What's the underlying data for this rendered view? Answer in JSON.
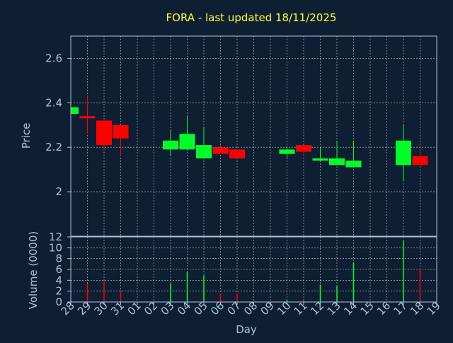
{
  "chart_data": [
    {
      "type": "candlestick",
      "title": "FORA - last updated 18/11/2025",
      "ylabel": "Price",
      "ylim": [
        1.8,
        2.7
      ],
      "yticks": [
        "2",
        "2.2",
        "2.4",
        "2.6"
      ],
      "ytick_values": [
        2.0,
        2.2,
        2.4,
        2.6
      ],
      "grid": true,
      "colors": {
        "up": "#00ff2a",
        "down": "#ff0000",
        "background": "#0f1f33",
        "plot": "#0f1f33",
        "grid": "#ffffff",
        "axis_text": "#a9c4d8",
        "title": "#ffff33"
      },
      "x": [
        "28",
        "29",
        "30",
        "31",
        "01",
        "02",
        "03",
        "04",
        "05",
        "06",
        "07",
        "08",
        "09",
        "10",
        "11",
        "12",
        "13",
        "14",
        "15",
        "16",
        "17",
        "18",
        "19"
      ],
      "candles": [
        {
          "day": "28",
          "open": 2.35,
          "high": 2.38,
          "low": 2.35,
          "close": 2.38
        },
        {
          "day": "29",
          "open": 2.34,
          "high": 2.43,
          "low": 2.26,
          "close": 2.33
        },
        {
          "day": "30",
          "open": 2.32,
          "high": 2.32,
          "low": 2.18,
          "close": 2.21
        },
        {
          "day": "31",
          "open": 2.3,
          "high": 2.3,
          "low": 2.16,
          "close": 2.24
        },
        {
          "day": "03",
          "open": 2.19,
          "high": 2.28,
          "low": 2.16,
          "close": 2.23
        },
        {
          "day": "04",
          "open": 2.19,
          "high": 2.34,
          "low": 2.19,
          "close": 2.26
        },
        {
          "day": "05",
          "open": 2.15,
          "high": 2.29,
          "low": 2.15,
          "close": 2.21
        },
        {
          "day": "06",
          "open": 2.2,
          "high": 2.2,
          "low": 2.17,
          "close": 2.17
        },
        {
          "day": "07",
          "open": 2.19,
          "high": 2.19,
          "low": 2.15,
          "close": 2.15
        },
        {
          "day": "10",
          "open": 2.17,
          "high": 2.2,
          "low": 2.15,
          "close": 2.19
        },
        {
          "day": "11",
          "open": 2.21,
          "high": 2.21,
          "low": 2.16,
          "close": 2.18
        },
        {
          "day": "12",
          "open": 2.14,
          "high": 2.2,
          "low": 2.14,
          "close": 2.15
        },
        {
          "day": "13",
          "open": 2.12,
          "high": 2.23,
          "low": 2.12,
          "close": 2.15
        },
        {
          "day": "14",
          "open": 2.11,
          "high": 2.23,
          "low": 2.11,
          "close": 2.14
        },
        {
          "day": "17",
          "open": 2.12,
          "high": 2.3,
          "low": 2.05,
          "close": 2.23
        },
        {
          "day": "18",
          "open": 2.16,
          "high": 2.19,
          "low": 2.12,
          "close": 2.12
        }
      ]
    },
    {
      "type": "bar",
      "ylabel": "Volume (0000)",
      "xlabel": "Day",
      "ylim": [
        0,
        12
      ],
      "yticks": [
        "0",
        "2",
        "4",
        "6",
        "8",
        "10",
        "12"
      ],
      "ytick_values": [
        0,
        2,
        4,
        6,
        8,
        10,
        12
      ],
      "categories": [
        "28",
        "29",
        "30",
        "31",
        "03",
        "04",
        "05",
        "06",
        "07",
        "10",
        "11",
        "12",
        "13",
        "14",
        "17",
        "18"
      ],
      "values": [
        0.2,
        3.4,
        3.8,
        2.2,
        3.4,
        5.5,
        4.9,
        1.5,
        1.6,
        0.3,
        0.4,
        3.2,
        2.9,
        7.3,
        11.3,
        6.2
      ],
      "bar_up": [
        true,
        false,
        false,
        false,
        true,
        true,
        true,
        false,
        false,
        true,
        false,
        true,
        true,
        true,
        true,
        false
      ]
    }
  ]
}
